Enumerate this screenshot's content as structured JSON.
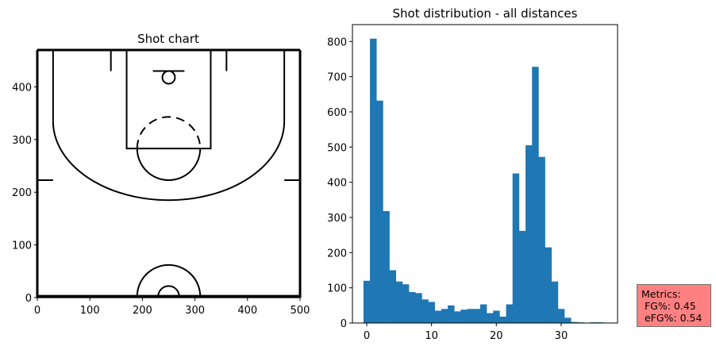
{
  "chart_data": [
    {
      "type": "scatter",
      "title": "Shot chart",
      "xlabel": "",
      "ylabel": "",
      "xlim": [
        0,
        500
      ],
      "ylim": [
        0,
        470
      ],
      "x_ticks": [
        "0",
        "100",
        "200",
        "300",
        "400",
        "500"
      ],
      "y_ticks": [
        "0",
        "100",
        "200",
        "300",
        "400"
      ],
      "grid": false,
      "court_line_color": "#000000"
    },
    {
      "type": "bar",
      "title": "Shot distribution - all distances",
      "xlabel": "",
      "ylabel": "",
      "xlim": [
        -2.2,
        38.7
      ],
      "ylim": [
        0,
        848
      ],
      "x_ticks": [
        "0",
        "10",
        "20",
        "30"
      ],
      "y_ticks": [
        "0",
        "100",
        "200",
        "300",
        "400",
        "500",
        "600",
        "700",
        "800"
      ],
      "bar_color": "#1f77b4",
      "grid": false,
      "bin_start": -0.5,
      "bin_width": 1,
      "values": [
        120,
        808,
        632,
        318,
        150,
        118,
        110,
        88,
        85,
        67,
        60,
        35,
        40,
        50,
        33,
        38,
        40,
        40,
        53,
        28,
        35,
        18,
        53,
        425,
        262,
        505,
        728,
        472,
        215,
        118,
        40,
        15,
        3,
        2,
        0,
        2,
        2,
        0
      ]
    }
  ],
  "metrics": {
    "text": "Metrics:\n FG%: 0.45\n eFG%: 0.54",
    "background": "#ff8080"
  }
}
